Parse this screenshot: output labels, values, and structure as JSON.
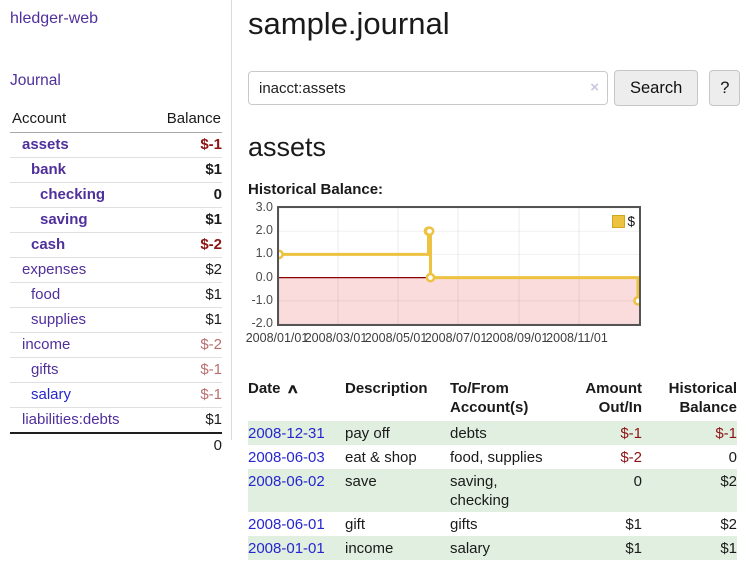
{
  "colors": {
    "link_purple": "#50309b",
    "link_blue": "#2626cf",
    "negative_dark": "#8e1313",
    "negative_muted": "#b96f6f",
    "row_green": "#e0efe0",
    "chart_line": "#edc240",
    "chart_negative_bg": "#fadcdc",
    "chart_zero_line": "#8b0000"
  },
  "sidebar": {
    "brand": "hledger-web",
    "journal_link": "Journal",
    "accounts": {
      "headers": {
        "account": "Account",
        "balance": "Balance"
      },
      "rows": [
        {
          "name": "assets",
          "balance": "$-1"
        },
        {
          "name": "bank",
          "balance": "$1"
        },
        {
          "name": "checking",
          "balance": "0"
        },
        {
          "name": "saving",
          "balance": "$1"
        },
        {
          "name": "cash",
          "balance": "$-2"
        },
        {
          "name": "expenses",
          "balance": "$2"
        },
        {
          "name": "food",
          "balance": "$1"
        },
        {
          "name": "supplies",
          "balance": "$1"
        },
        {
          "name": "income",
          "balance": "$-2"
        },
        {
          "name": "gifts",
          "balance": "$-1"
        },
        {
          "name": "salary",
          "balance": "$-1"
        },
        {
          "name": "liabilities:debts",
          "balance": "$1"
        }
      ],
      "total": "0"
    }
  },
  "main": {
    "title": "sample.journal",
    "search": {
      "value": "inacct:assets",
      "clear_icon": "×",
      "button": "Search",
      "help_button": "?"
    },
    "account_heading": "assets",
    "chart_label": "Historical Balance:"
  },
  "chart_data": {
    "type": "line",
    "title": "Historical Balance",
    "legend": "$",
    "legend_position": "top-right",
    "grid": true,
    "step": true,
    "ylim": [
      -2,
      3
    ],
    "x_range": [
      "2008-01-01",
      "2009-01-01"
    ],
    "y_ticks": [
      "3.0",
      "2.0",
      "1.0",
      "0.0",
      "-1.0",
      "-2.0"
    ],
    "x_ticks": [
      "2008/01/01",
      "2008/03/01",
      "2008/05/01",
      "2008/07/01",
      "2008/09/01",
      "2008/11/01"
    ],
    "series": [
      {
        "name": "$",
        "color": "#edc240",
        "points": [
          [
            "2008-01-01",
            1
          ],
          [
            "2008-06-01",
            2
          ],
          [
            "2008-06-02",
            2
          ],
          [
            "2008-06-03",
            0
          ],
          [
            "2008-12-31",
            -1
          ]
        ]
      }
    ],
    "negative_region_color": "#fadcdc",
    "zero_line_color": "#8b0000"
  },
  "register": {
    "headers": {
      "date": "Date",
      "sort_icon": "∧",
      "description": "Description",
      "account": "To/From\nAccount(s)",
      "amount": "Amount\nOut/In",
      "balance": "Historical\nBalance"
    },
    "rows": [
      {
        "date": "2008-12-31",
        "description": "pay off",
        "account": "debts",
        "amount": "$-1",
        "balance": "$-1"
      },
      {
        "date": "2008-06-03",
        "description": "eat & shop",
        "account": "food, supplies",
        "amount": "$-2",
        "balance": "0"
      },
      {
        "date": "2008-06-02",
        "description": "save",
        "account": "saving,\nchecking",
        "amount": "0",
        "balance": "$2"
      },
      {
        "date": "2008-06-01",
        "description": "gift",
        "account": "gifts",
        "amount": "$1",
        "balance": "$2"
      },
      {
        "date": "2008-01-01",
        "description": "income",
        "account": "salary",
        "amount": "$1",
        "balance": "$1"
      }
    ]
  }
}
